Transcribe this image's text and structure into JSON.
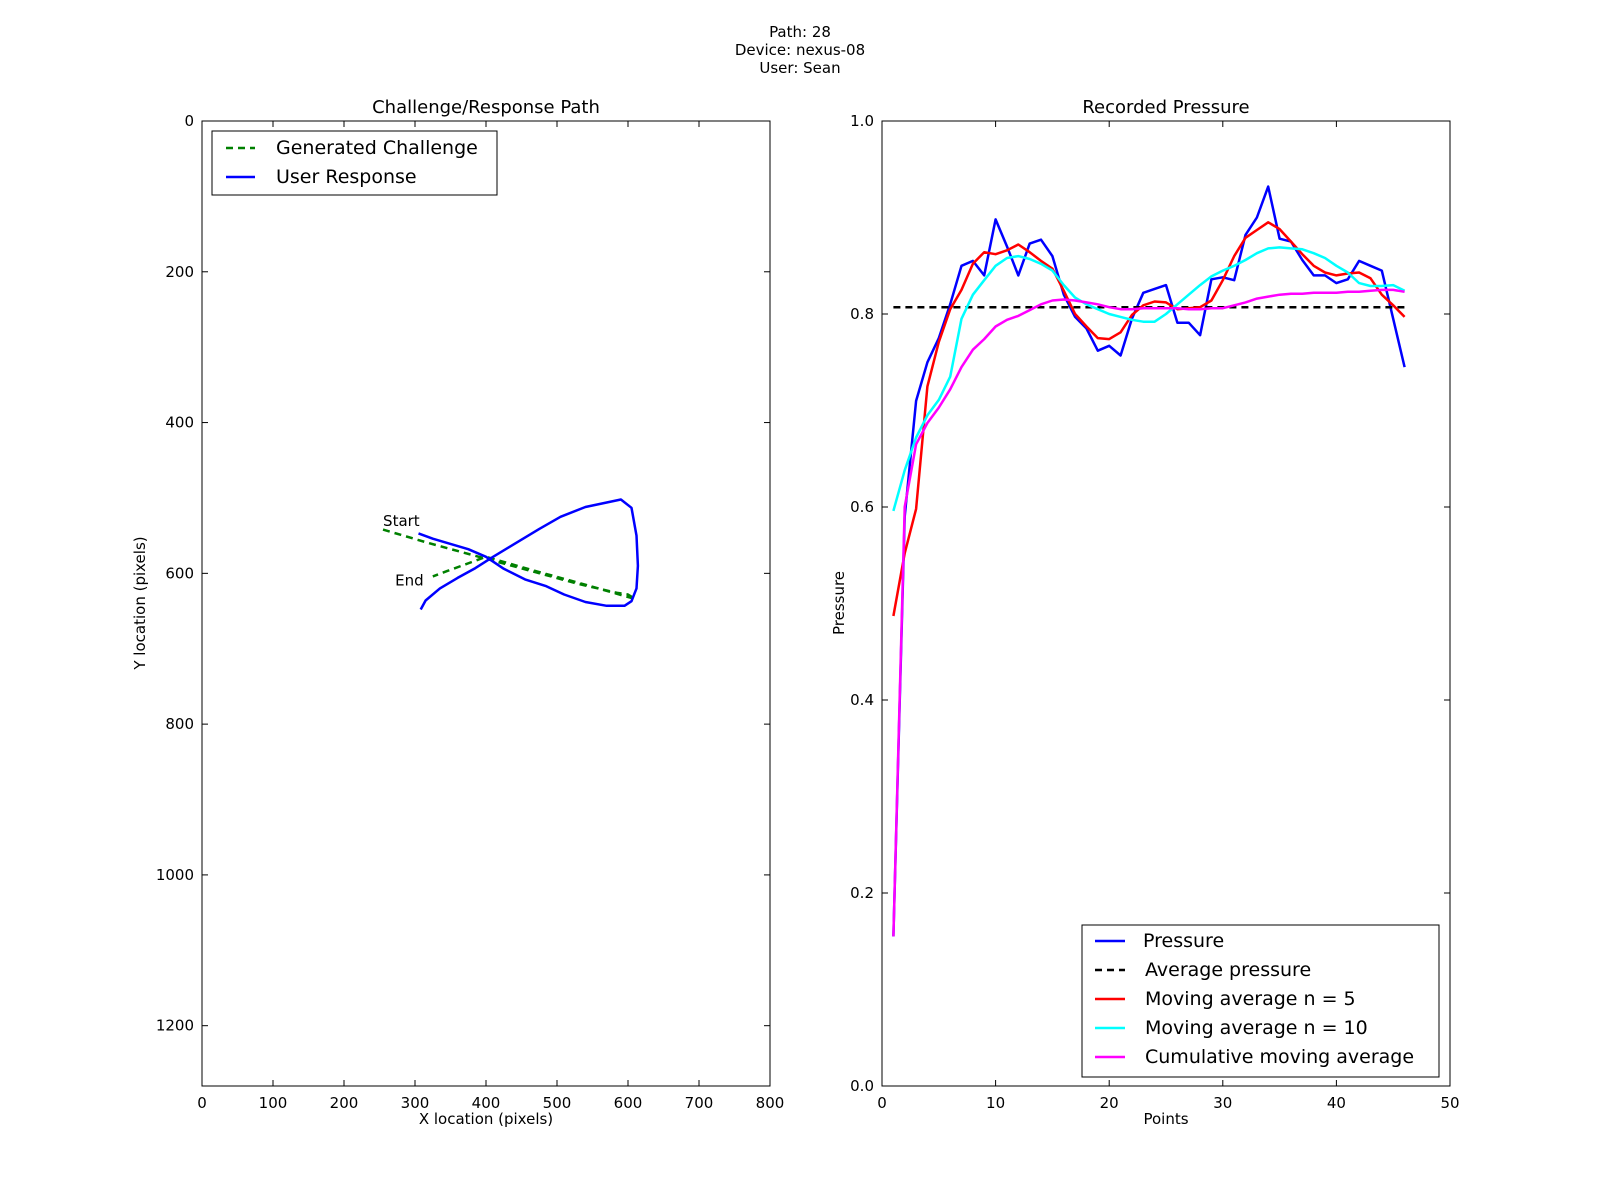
{
  "figure": {
    "title_lines": [
      "Path: 28",
      "Device: nexus-08",
      "User: Sean"
    ]
  },
  "chart_data": [
    {
      "type": "line",
      "title": "Challenge/Response Path",
      "xlabel": "X location (pixels)",
      "ylabel": "Y location (pixels)",
      "xlim": [
        0,
        800
      ],
      "ylim": [
        1280,
        0
      ],
      "y_inverted": true,
      "xticks": [
        0,
        100,
        200,
        300,
        400,
        500,
        600,
        700,
        800
      ],
      "yticks": [
        0,
        200,
        400,
        600,
        800,
        1000,
        1200
      ],
      "legend_position": "top-left",
      "series": [
        {
          "name": "Generated Challenge",
          "color": "#008000",
          "style": "dashed",
          "x": [
            255,
            320,
            390,
            460,
            530,
            585,
            600,
            610,
            540,
            470,
            400,
            345,
            325
          ],
          "y": [
            542,
            560,
            578,
            596,
            614,
            626,
            628,
            634,
            615,
            597,
            578,
            597,
            604
          ]
        },
        {
          "name": "User Response",
          "color": "#0000ff",
          "style": "solid",
          "x": [
            305,
            325,
            350,
            375,
            400,
            425,
            455,
            485,
            510,
            540,
            570,
            595,
            605,
            612,
            614,
            612,
            605,
            590,
            570,
            540,
            505,
            475,
            440,
            410,
            385,
            360,
            335,
            315,
            308
          ],
          "y": [
            547,
            554,
            561,
            568,
            578,
            594,
            608,
            617,
            628,
            638,
            643,
            643,
            637,
            620,
            590,
            550,
            513,
            502,
            506,
            512,
            525,
            541,
            561,
            578,
            593,
            606,
            620,
            636,
            648
          ]
        }
      ],
      "annotations": [
        {
          "text": "Start",
          "x": 255,
          "y": 537
        },
        {
          "text": "End",
          "x": 272,
          "y": 616
        }
      ]
    },
    {
      "type": "line",
      "title": "Recorded Pressure",
      "xlabel": "Points",
      "ylabel": "Pressure",
      "xlim": [
        0,
        50
      ],
      "ylim": [
        0.0,
        1.0
      ],
      "xticks": [
        0,
        10,
        20,
        30,
        40,
        50
      ],
      "yticks": [
        "0.0",
        "0.2",
        "0.4",
        "0.6",
        "0.8",
        "1.0"
      ],
      "legend_position": "lower-right",
      "series": [
        {
          "name": "Pressure",
          "color": "#0000ff",
          "style": "solid",
          "x": [
            1,
            2,
            3,
            4,
            5,
            6,
            7,
            8,
            9,
            10,
            11,
            12,
            13,
            14,
            15,
            16,
            17,
            18,
            19,
            20,
            21,
            22,
            23,
            24,
            25,
            26,
            27,
            28,
            29,
            30,
            31,
            32,
            33,
            34,
            35,
            36,
            37,
            38,
            39,
            40,
            41,
            42,
            43,
            44,
            45,
            46
          ],
          "y": [
            0.155,
            0.59,
            0.71,
            0.75,
            0.775,
            0.81,
            0.85,
            0.855,
            0.84,
            0.898,
            0.87,
            0.84,
            0.873,
            0.877,
            0.86,
            0.82,
            0.797,
            0.785,
            0.762,
            0.767,
            0.757,
            0.795,
            0.822,
            0.826,
            0.83,
            0.791,
            0.791,
            0.778,
            0.836,
            0.838,
            0.835,
            0.882,
            0.9,
            0.932,
            0.878,
            0.875,
            0.856,
            0.84,
            0.84,
            0.832,
            0.836,
            0.855,
            0.85,
            0.845,
            0.795,
            0.745
          ]
        },
        {
          "name": "Average pressure",
          "color": "#000000",
          "style": "dashed",
          "x": [
            1,
            46
          ],
          "y": [
            0.807,
            0.807
          ]
        },
        {
          "name": "Moving average n = 5",
          "color": "#ff0000",
          "style": "solid",
          "x": [
            1,
            2,
            3,
            4,
            5,
            6,
            7,
            8,
            9,
            10,
            11,
            12,
            13,
            14,
            15,
            16,
            17,
            18,
            19,
            20,
            21,
            22,
            23,
            24,
            25,
            26,
            27,
            28,
            29,
            30,
            31,
            32,
            33,
            34,
            35,
            36,
            37,
            38,
            39,
            40,
            41,
            42,
            43,
            44,
            45,
            46
          ],
          "y": [
            0.487,
            0.552,
            0.598,
            0.725,
            0.771,
            0.805,
            0.825,
            0.852,
            0.864,
            0.862,
            0.866,
            0.872,
            0.864,
            0.855,
            0.847,
            0.824,
            0.8,
            0.787,
            0.775,
            0.774,
            0.781,
            0.799,
            0.809,
            0.813,
            0.812,
            0.805,
            0.806,
            0.807,
            0.814,
            0.835,
            0.86,
            0.879,
            0.887,
            0.895,
            0.888,
            0.875,
            0.862,
            0.85,
            0.843,
            0.84,
            0.842,
            0.843,
            0.837,
            0.82,
            0.809,
            0.797
          ]
        },
        {
          "name": "Moving average n = 10",
          "color": "#00ffff",
          "style": "solid",
          "x": [
            1,
            2,
            3,
            4,
            5,
            6,
            7,
            8,
            9,
            10,
            11,
            12,
            13,
            14,
            15,
            16,
            17,
            18,
            19,
            20,
            21,
            22,
            23,
            24,
            25,
            26,
            27,
            28,
            29,
            30,
            31,
            32,
            33,
            34,
            35,
            36,
            37,
            38,
            39,
            40,
            41,
            42,
            43,
            44,
            45,
            46
          ],
          "y": [
            0.596,
            0.638,
            0.672,
            0.695,
            0.711,
            0.735,
            0.795,
            0.82,
            0.835,
            0.85,
            0.858,
            0.86,
            0.857,
            0.852,
            0.845,
            0.83,
            0.817,
            0.81,
            0.805,
            0.8,
            0.797,
            0.794,
            0.792,
            0.792,
            0.8,
            0.81,
            0.82,
            0.83,
            0.839,
            0.845,
            0.85,
            0.856,
            0.863,
            0.868,
            0.869,
            0.868,
            0.867,
            0.863,
            0.858,
            0.85,
            0.843,
            0.832,
            0.829,
            0.829,
            0.83,
            0.824
          ]
        },
        {
          "name": "Cumulative moving average",
          "color": "#ff00ff",
          "style": "solid",
          "x": [
            1,
            2,
            3,
            4,
            5,
            6,
            7,
            8,
            9,
            10,
            11,
            12,
            13,
            14,
            15,
            16,
            17,
            18,
            19,
            20,
            21,
            22,
            23,
            24,
            25,
            26,
            27,
            28,
            29,
            30,
            31,
            32,
            33,
            34,
            35,
            36,
            37,
            38,
            39,
            40,
            41,
            42,
            43,
            44,
            45,
            46
          ],
          "y": [
            0.155,
            0.6,
            0.665,
            0.687,
            0.703,
            0.722,
            0.745,
            0.763,
            0.774,
            0.787,
            0.794,
            0.798,
            0.804,
            0.81,
            0.814,
            0.815,
            0.814,
            0.812,
            0.81,
            0.807,
            0.805,
            0.805,
            0.806,
            0.806,
            0.806,
            0.806,
            0.805,
            0.805,
            0.806,
            0.806,
            0.809,
            0.812,
            0.816,
            0.818,
            0.82,
            0.821,
            0.821,
            0.822,
            0.822,
            0.822,
            0.823,
            0.823,
            0.824,
            0.825,
            0.825,
            0.823
          ]
        }
      ]
    }
  ]
}
